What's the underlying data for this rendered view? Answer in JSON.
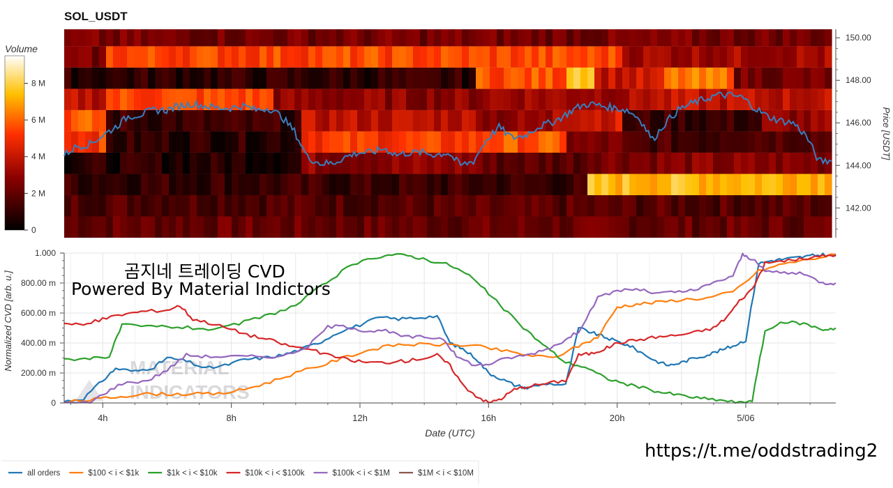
{
  "title": "SOL_USDT",
  "branding": {
    "line1": "곰지네 트레이딩 CVD",
    "line2": "Powered By Material Indictors",
    "url": "https://t.me/oddstrading2",
    "watermark_line1": "MATERIAL",
    "watermark_line2": "INDICATORS"
  },
  "colors": {
    "all orders": "#1f77b4",
    "$100 < i < $1k": "#ff7f0e",
    "$1k < i < $10k": "#2ca02c",
    "$10k < i < $100k": "#d62728",
    "$100k < i < $1M": "#9467bd",
    "$1M < i < $10M": "#8c564b",
    "price_line": "#3a7ebf"
  },
  "chart_data": [
    {
      "type": "heatmap",
      "colorbar_title": "Volume",
      "colorbar_ticks": [
        "0",
        "2 M",
        "4 M",
        "6 M",
        "8 M"
      ],
      "colorbar_range": [
        0,
        9500000
      ],
      "ylabel": "Price [USDT]",
      "ylim": [
        140.6,
        150.4
      ],
      "y_ticks": [
        "142.00",
        "144.00",
        "146.00",
        "148.00",
        "150.00"
      ],
      "y_tick_values": [
        142,
        144,
        146,
        148,
        150
      ],
      "x_range_hours": [
        2.8,
        26.8
      ],
      "bin_edges": [
        140.6,
        141.6,
        142.6,
        143.6,
        144.6,
        145.6,
        146.6,
        147.6,
        148.6,
        149.6,
        150.4
      ],
      "columns": 110,
      "segments": [
        {
          "bin": 0,
          "values": [
            [
              0,
              110,
              0.22
            ]
          ]
        },
        {
          "bin": 1,
          "values": [
            [
              0,
              110,
              0.18
            ]
          ]
        },
        {
          "bin": 2,
          "values": [
            [
              0,
              75,
              0.12
            ],
            [
              75,
              110,
              0.78
            ]
          ]
        },
        {
          "bin": 3,
          "values": [
            [
              0,
              34,
              0.08
            ],
            [
              34,
              60,
              0.3
            ],
            [
              60,
              75,
              0.2
            ],
            [
              75,
              110,
              0.28
            ]
          ]
        },
        {
          "bin": 4,
          "values": [
            [
              0,
              6,
              0.55
            ],
            [
              6,
              34,
              0.1
            ],
            [
              34,
              60,
              0.55
            ],
            [
              60,
              72,
              0.6
            ],
            [
              72,
              80,
              0.25
            ],
            [
              80,
              94,
              0.15
            ],
            [
              94,
              110,
              0.2
            ]
          ]
        },
        {
          "bin": 5,
          "values": [
            [
              0,
              6,
              0.6
            ],
            [
              6,
              34,
              0.12
            ],
            [
              34,
              60,
              0.4
            ],
            [
              60,
              70,
              0.3
            ],
            [
              70,
              80,
              0.45
            ],
            [
              80,
              100,
              0.12
            ],
            [
              100,
              110,
              0.3
            ]
          ]
        },
        {
          "bin": 6,
          "values": [
            [
              0,
              6,
              0.4
            ],
            [
              6,
              30,
              0.58
            ],
            [
              30,
              60,
              0.3
            ],
            [
              60,
              82,
              0.35
            ],
            [
              82,
              110,
              0.4
            ]
          ]
        },
        {
          "bin": 7,
          "values": [
            [
              0,
              59,
              0.1
            ],
            [
              59,
              72,
              0.6
            ],
            [
              72,
              76,
              0.85
            ],
            [
              76,
              86,
              0.42
            ],
            [
              86,
              96,
              0.65
            ],
            [
              96,
              110,
              0.25
            ]
          ]
        },
        {
          "bin": 8,
          "values": [
            [
              0,
              6,
              0.25
            ],
            [
              6,
              80,
              0.58
            ],
            [
              80,
              110,
              0.35
            ]
          ]
        },
        {
          "bin": 9,
          "values": [
            [
              0,
              110,
              0.25
            ]
          ]
        }
      ],
      "price_line": {
        "x": [
          2.8,
          3.2,
          3.6,
          4.0,
          4.4,
          4.8,
          5.2,
          5.6,
          6.0,
          6.4,
          6.8,
          7.2,
          7.6,
          8.0,
          8.4,
          8.8,
          9.2,
          9.6,
          10.0,
          10.4,
          10.8,
          11.2,
          11.6,
          12.0,
          12.4,
          12.8,
          13.2,
          13.6,
          14.0,
          14.4,
          14.8,
          15.2,
          15.6,
          16.0,
          16.4,
          16.8,
          17.2,
          17.6,
          18.0,
          18.4,
          18.8,
          19.2,
          19.6,
          20.0,
          20.4,
          20.8,
          21.2,
          21.6,
          22.0,
          22.4,
          22.8,
          23.2,
          23.6,
          24.0,
          24.4,
          24.8,
          25.2,
          25.6,
          26.0,
          26.4,
          26.8
        ],
        "y": [
          144.5,
          144.9,
          145.0,
          145.4,
          145.8,
          146.3,
          146.4,
          146.6,
          146.6,
          146.8,
          146.9,
          146.8,
          146.7,
          146.7,
          146.8,
          146.6,
          146.7,
          146.3,
          145.6,
          144.4,
          144.1,
          144.1,
          144.4,
          144.6,
          144.6,
          144.8,
          144.5,
          144.6,
          144.6,
          144.5,
          144.6,
          144.0,
          144.2,
          145.2,
          145.8,
          145.3,
          145.4,
          145.8,
          146.0,
          146.3,
          146.7,
          146.9,
          146.8,
          146.7,
          146.6,
          146.2,
          145.2,
          146.0,
          146.6,
          146.9,
          147.1,
          147.3,
          147.3,
          147.2,
          146.7,
          146.3,
          146.1,
          146.0,
          145.4,
          144.2,
          144.2
        ]
      }
    },
    {
      "type": "line",
      "xlabel": "Date (UTC)",
      "ylabel": "Normalized CVD [arb. u.]",
      "ylim": [
        0,
        1000
      ],
      "xlim": [
        2.8,
        26.8
      ],
      "y_ticks": [
        "0",
        "200.00 m",
        "400.00 m",
        "600.00 m",
        "800.00 m",
        "1.000"
      ],
      "y_tick_values": [
        0,
        200,
        400,
        600,
        800,
        1000
      ],
      "x_ticks": [
        "4h",
        "8h",
        "12h",
        "16h",
        "20h",
        "5/06"
      ],
      "x_tick_values": [
        4,
        8,
        12,
        16,
        20,
        24
      ],
      "legend_position": "bottom-left",
      "series": [
        {
          "name": "all orders",
          "x": [
            2.8,
            3.4,
            4.0,
            4.4,
            5.0,
            5.6,
            6.0,
            6.6,
            7.2,
            7.8,
            8.4,
            9.0,
            9.6,
            10.2,
            10.8,
            11.4,
            12.0,
            12.6,
            13.2,
            13.8,
            14.4,
            14.8,
            15.2,
            15.6,
            16.0,
            16.4,
            16.8,
            17.2,
            17.8,
            18.4,
            18.8,
            19.2,
            19.6,
            20.0,
            20.4,
            20.8,
            21.2,
            21.6,
            22.0,
            22.4,
            22.8,
            23.2,
            23.6,
            24.0,
            24.4,
            24.8,
            25.2,
            25.6,
            26.0,
            26.4,
            26.8
          ],
          "y": [
            10,
            30,
            150,
            230,
            210,
            240,
            300,
            280,
            230,
            250,
            290,
            300,
            320,
            360,
            410,
            480,
            520,
            570,
            560,
            570,
            580,
            400,
            360,
            300,
            200,
            160,
            120,
            100,
            130,
            120,
            500,
            470,
            440,
            410,
            380,
            330,
            280,
            250,
            270,
            300,
            320,
            350,
            380,
            420,
            930,
            950,
            960,
            970,
            980,
            990,
            980
          ]
        },
        {
          "name": "$100 < i < $1k",
          "x": [
            2.8,
            3.6,
            4.4,
            5.2,
            6.0,
            6.8,
            7.6,
            8.4,
            9.2,
            10.0,
            10.8,
            11.6,
            12.4,
            13.2,
            14.0,
            14.8,
            15.6,
            16.4,
            17.2,
            18.0,
            18.8,
            19.4,
            20.0,
            20.6,
            21.2,
            22.0,
            22.8,
            23.6,
            24.4,
            25.2,
            26.0,
            26.8
          ],
          "y": [
            5,
            20,
            40,
            60,
            60,
            60,
            60,
            90,
            140,
            200,
            250,
            310,
            360,
            390,
            390,
            390,
            380,
            350,
            320,
            300,
            380,
            440,
            640,
            660,
            670,
            690,
            700,
            740,
            880,
            930,
            960,
            990
          ]
        },
        {
          "name": "$1k < i < $10k",
          "x": [
            2.8,
            3.6,
            4.2,
            4.6,
            5.2,
            6.0,
            6.8,
            7.6,
            8.4,
            9.2,
            10.0,
            10.8,
            11.6,
            12.4,
            13.0,
            13.6,
            14.2,
            14.8,
            15.4,
            16.0,
            16.6,
            17.2,
            17.8,
            18.4,
            19.0,
            19.6,
            20.2,
            20.8,
            21.4,
            22.0,
            22.6,
            23.2,
            23.8,
            24.2,
            24.6,
            25.2,
            25.8,
            26.4,
            26.8
          ],
          "y": [
            290,
            300,
            310,
            520,
            510,
            510,
            500,
            490,
            540,
            590,
            650,
            780,
            900,
            970,
            990,
            980,
            950,
            920,
            850,
            730,
            600,
            480,
            370,
            270,
            240,
            170,
            130,
            100,
            70,
            50,
            30,
            20,
            0,
            20,
            480,
            540,
            530,
            490,
            500
          ]
        },
        {
          "name": "$10k < i < $100k",
          "x": [
            2.8,
            3.4,
            4.0,
            4.6,
            5.2,
            6.0,
            6.4,
            6.8,
            7.4,
            8.0,
            8.6,
            9.2,
            9.8,
            10.4,
            11.0,
            11.6,
            12.2,
            12.8,
            13.4,
            14.0,
            14.4,
            14.8,
            15.2,
            15.6,
            16.0,
            16.4,
            16.8,
            17.2,
            17.8,
            18.4,
            18.8,
            19.2,
            19.6,
            20.0,
            20.6,
            21.2,
            21.8,
            22.4,
            23.0,
            23.4,
            23.8,
            24.2,
            24.6,
            25.2,
            25.8,
            26.4,
            26.8
          ],
          "y": [
            530,
            520,
            560,
            590,
            610,
            620,
            650,
            560,
            530,
            490,
            450,
            420,
            380,
            360,
            320,
            290,
            270,
            270,
            280,
            300,
            320,
            250,
            120,
            50,
            0,
            30,
            90,
            110,
            130,
            150,
            320,
            330,
            360,
            400,
            420,
            440,
            450,
            470,
            500,
            570,
            680,
            760,
            930,
            950,
            960,
            980,
            990
          ]
        },
        {
          "name": "$100k < i < $1M",
          "x": [
            2.8,
            3.6,
            4.0,
            4.6,
            5.4,
            6.0,
            6.6,
            7.2,
            8.0,
            8.8,
            9.6,
            10.4,
            11.0,
            11.6,
            12.2,
            12.8,
            13.4,
            14.0,
            14.6,
            15.0,
            15.6,
            16.0,
            16.6,
            17.2,
            17.8,
            18.4,
            18.8,
            19.4,
            20.0,
            20.6,
            21.2,
            21.8,
            22.4,
            23.0,
            23.6,
            23.9,
            24.2,
            24.6,
            25.2,
            25.8,
            26.4,
            26.8
          ],
          "y": [
            0,
            0,
            60,
            130,
            150,
            220,
            320,
            310,
            310,
            310,
            310,
            380,
            510,
            510,
            480,
            480,
            440,
            440,
            430,
            310,
            250,
            260,
            300,
            320,
            360,
            420,
            480,
            700,
            750,
            760,
            730,
            740,
            750,
            800,
            850,
            990,
            960,
            880,
            870,
            860,
            800,
            800
          ]
        },
        {
          "name": "$1M < i < $10M",
          "x": [],
          "y": []
        }
      ]
    }
  ]
}
